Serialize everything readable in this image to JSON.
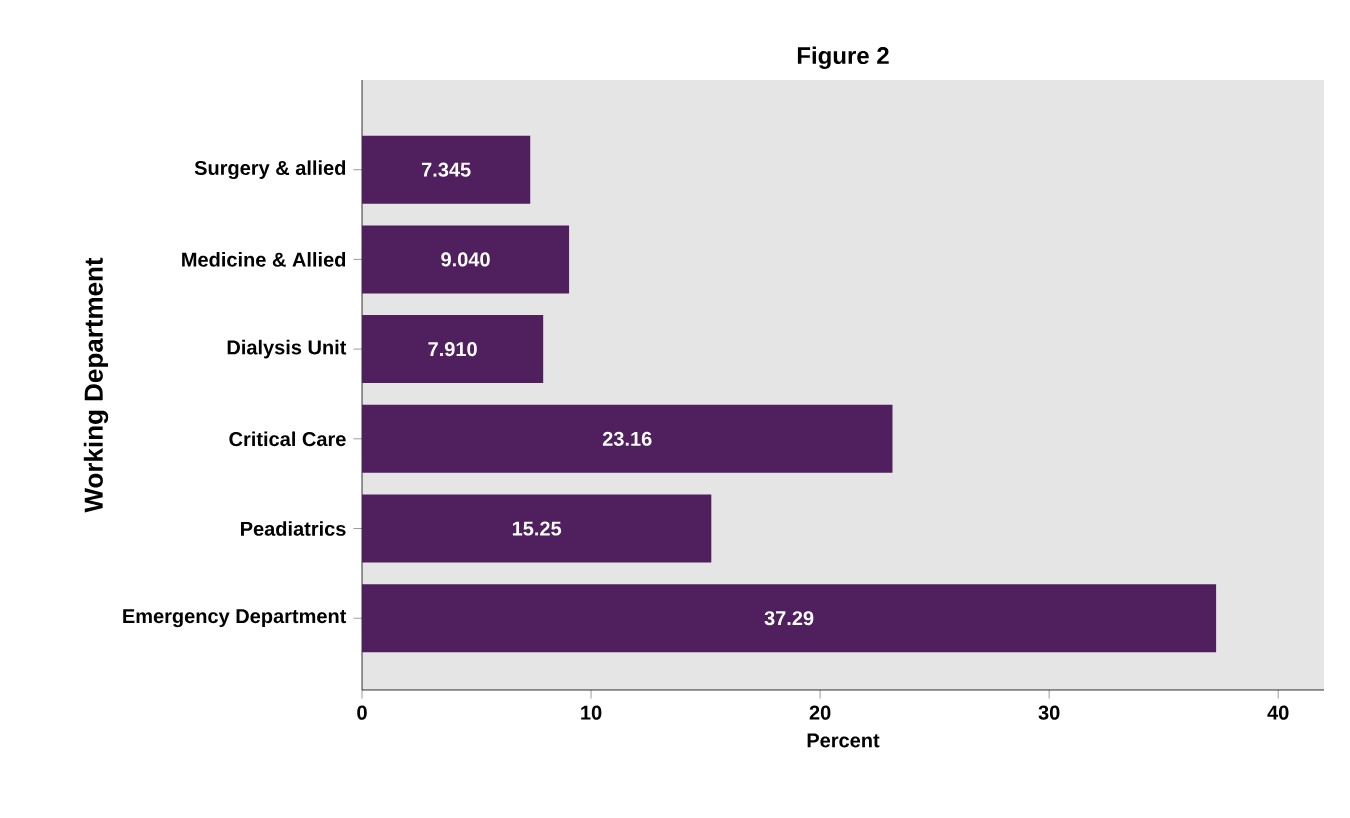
{
  "chart_data": {
    "type": "bar",
    "orientation": "horizontal",
    "title": "Figure 2",
    "xlabel": "Percent",
    "ylabel": "Working Department",
    "categories": [
      "Surgery & allied",
      "Medicine & Allied",
      "Dialysis Unit",
      "Critical Care",
      "Peadiatrics",
      "Emergency Department"
    ],
    "values": [
      7.345,
      9.04,
      7.91,
      23.16,
      15.25,
      37.29
    ],
    "value_labels": [
      "7.345",
      "9.040",
      "7.910",
      "23.16",
      "15.25",
      "37.29"
    ],
    "color": "#4f1f5e",
    "xlim": [
      0,
      42
    ],
    "xticks": [
      0,
      10,
      20,
      30,
      40
    ],
    "grid": false
  }
}
